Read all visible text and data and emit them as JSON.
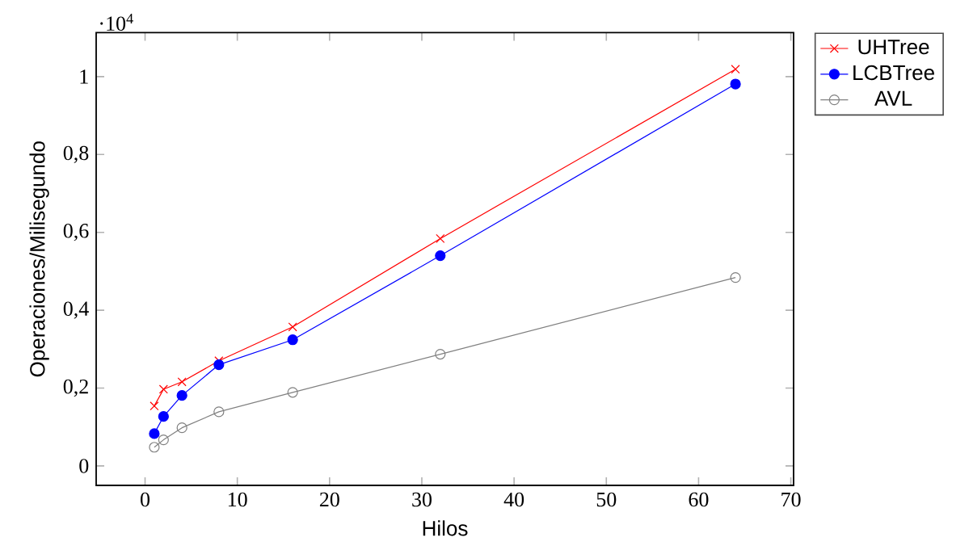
{
  "chart_data": {
    "type": "line",
    "xlabel": "Hilos",
    "ylabel": "Operaciones/Milisegundo",
    "annotations": [
      "·10$^{4}$"
    ],
    "xlim": [
      -5.3,
      70.3
    ],
    "ylim": [
      -0.05,
      1.113
    ],
    "xticks": [
      0,
      10,
      20,
      30,
      40,
      50,
      60,
      70
    ],
    "yticks": [
      0,
      {
        "value": 0.2,
        "label": "0,2"
      },
      {
        "value": 0.4,
        "label": "0,4"
      },
      {
        "value": 0.6,
        "label": "0,6"
      },
      {
        "value": 0.8,
        "label": "0,8"
      },
      1
    ],
    "x": [
      1,
      2,
      4,
      8,
      16,
      32,
      64
    ],
    "legend": "top right",
    "series": [
      {
        "name": "UHTree",
        "color": "#ff0000",
        "marker": "cross",
        "values": [
          0.154,
          0.197,
          0.216,
          0.27,
          0.357,
          0.584,
          1.019
        ]
      },
      {
        "name": "LCBTree",
        "color": "#0000ff",
        "marker": "circle",
        "values": [
          0.083,
          0.127,
          0.181,
          0.26,
          0.324,
          0.54,
          0.981
        ]
      },
      {
        "name": "AVL",
        "color": "#808080",
        "marker": "circle",
        "values": [
          0.048,
          0.067,
          0.098,
          0.139,
          0.189,
          0.287,
          0.484
        ]
      }
    ]
  }
}
